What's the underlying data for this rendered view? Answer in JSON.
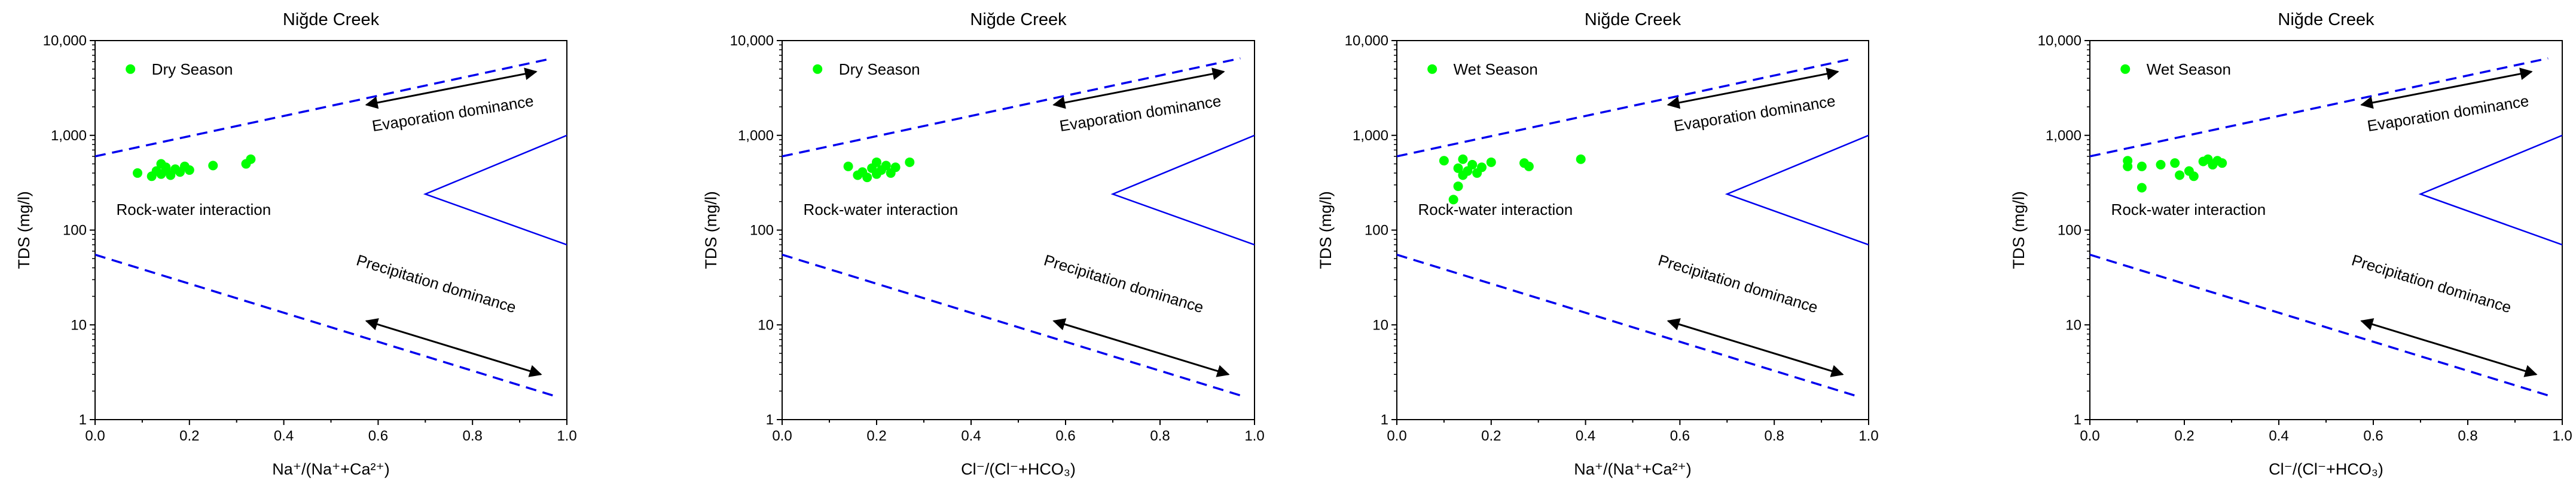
{
  "chart_data": [
    {
      "type": "scatter",
      "title": "Niğde Creek",
      "xlabel": "Na⁺/(Na⁺+Ca²⁺)",
      "ylabel": "TDS (mg/l)",
      "xscale": "linear",
      "yscale": "log",
      "xlim": [
        0,
        1
      ],
      "ylim": [
        1,
        10000
      ],
      "xticks": [
        "0.0",
        "0.2",
        "0.4",
        "0.6",
        "0.8",
        "1.0"
      ],
      "yticks": [
        "1",
        "10",
        "100",
        "1,000",
        "10,000"
      ],
      "legend": {
        "position": "top-left",
        "entries": [
          "Dry Season"
        ]
      },
      "series": [
        {
          "name": "Dry Season",
          "color": "#00ff00",
          "points": [
            {
              "x": 0.09,
              "y": 400
            },
            {
              "x": 0.12,
              "y": 370
            },
            {
              "x": 0.13,
              "y": 420
            },
            {
              "x": 0.14,
              "y": 390
            },
            {
              "x": 0.14,
              "y": 500
            },
            {
              "x": 0.15,
              "y": 430
            },
            {
              "x": 0.15,
              "y": 460
            },
            {
              "x": 0.16,
              "y": 380
            },
            {
              "x": 0.17,
              "y": 440
            },
            {
              "x": 0.18,
              "y": 410
            },
            {
              "x": 0.19,
              "y": 470
            },
            {
              "x": 0.2,
              "y": 430
            },
            {
              "x": 0.25,
              "y": 480
            },
            {
              "x": 0.32,
              "y": 500
            },
            {
              "x": 0.33,
              "y": 560
            }
          ]
        }
      ],
      "annotations": [
        "Evaporation dominance",
        "Rock-water interaction",
        "Precipitation dominance"
      ]
    },
    {
      "type": "scatter",
      "title": "Niğde Creek",
      "xlabel": "Cl⁻/(Cl⁻+HCO₃)",
      "ylabel": "TDS (mg/l)",
      "xscale": "linear",
      "yscale": "log",
      "xlim": [
        0,
        1
      ],
      "ylim": [
        1,
        10000
      ],
      "xticks": [
        "0.0",
        "0.2",
        "0.4",
        "0.6",
        "0.8",
        "1.0"
      ],
      "yticks": [
        "1",
        "10",
        "100",
        "1,000",
        "10,000"
      ],
      "legend": {
        "position": "top-left",
        "entries": [
          "Dry Season"
        ]
      },
      "series": [
        {
          "name": "Dry Season",
          "color": "#00ff00",
          "points": [
            {
              "x": 0.14,
              "y": 470
            },
            {
              "x": 0.16,
              "y": 380
            },
            {
              "x": 0.17,
              "y": 410
            },
            {
              "x": 0.18,
              "y": 360
            },
            {
              "x": 0.19,
              "y": 450
            },
            {
              "x": 0.2,
              "y": 520
            },
            {
              "x": 0.2,
              "y": 390
            },
            {
              "x": 0.21,
              "y": 430
            },
            {
              "x": 0.22,
              "y": 480
            },
            {
              "x": 0.23,
              "y": 400
            },
            {
              "x": 0.24,
              "y": 460
            },
            {
              "x": 0.27,
              "y": 520
            }
          ]
        }
      ],
      "annotations": [
        "Evaporation dominance",
        "Rock-water interaction",
        "Precipitation dominance"
      ]
    },
    {
      "type": "scatter",
      "title": "Niğde Creek",
      "xlabel": "Na⁺/(Na⁺+Ca²⁺)",
      "ylabel": "TDS (mg/l)",
      "xscale": "linear",
      "yscale": "log",
      "xlim": [
        0,
        1
      ],
      "ylim": [
        1,
        10000
      ],
      "xticks": [
        "0.0",
        "0.2",
        "0.4",
        "0.6",
        "0.8",
        "1.0"
      ],
      "yticks": [
        "1",
        "10",
        "100",
        "1,000",
        "10,000"
      ],
      "legend": {
        "position": "top-left",
        "entries": [
          "Wet Season"
        ]
      },
      "series": [
        {
          "name": "Wet Season",
          "color": "#00ff00",
          "points": [
            {
              "x": 0.1,
              "y": 540
            },
            {
              "x": 0.12,
              "y": 210
            },
            {
              "x": 0.13,
              "y": 450
            },
            {
              "x": 0.13,
              "y": 290
            },
            {
              "x": 0.14,
              "y": 380
            },
            {
              "x": 0.14,
              "y": 560
            },
            {
              "x": 0.15,
              "y": 420
            },
            {
              "x": 0.16,
              "y": 490
            },
            {
              "x": 0.17,
              "y": 400
            },
            {
              "x": 0.18,
              "y": 460
            },
            {
              "x": 0.2,
              "y": 520
            },
            {
              "x": 0.27,
              "y": 510
            },
            {
              "x": 0.28,
              "y": 470
            },
            {
              "x": 0.39,
              "y": 560
            }
          ]
        }
      ],
      "annotations": [
        "Evaporation dominance",
        "Rock-water interaction",
        "Precipitation dominance"
      ]
    },
    {
      "type": "scatter",
      "title": "Niğde Creek",
      "xlabel": "Cl⁻/(Cl⁻+HCO₃)",
      "ylabel": "TDS (mg/l)",
      "xscale": "linear",
      "yscale": "log",
      "xlim": [
        0,
        1
      ],
      "ylim": [
        1,
        10000
      ],
      "xticks": [
        "0.0",
        "0.2",
        "0.4",
        "0.6",
        "0.8",
        "1.0"
      ],
      "yticks": [
        "1",
        "10",
        "100",
        "1,000",
        "10,000"
      ],
      "legend": {
        "position": "top-left",
        "entries": [
          "Wet Season"
        ]
      },
      "series": [
        {
          "name": "Wet Season",
          "color": "#00ff00",
          "points": [
            {
              "x": 0.08,
              "y": 540
            },
            {
              "x": 0.08,
              "y": 470
            },
            {
              "x": 0.11,
              "y": 280
            },
            {
              "x": 0.11,
              "y": 470
            },
            {
              "x": 0.15,
              "y": 490
            },
            {
              "x": 0.18,
              "y": 510
            },
            {
              "x": 0.19,
              "y": 380
            },
            {
              "x": 0.21,
              "y": 420
            },
            {
              "x": 0.22,
              "y": 370
            },
            {
              "x": 0.24,
              "y": 530
            },
            {
              "x": 0.25,
              "y": 560
            },
            {
              "x": 0.26,
              "y": 490
            },
            {
              "x": 0.27,
              "y": 540
            },
            {
              "x": 0.28,
              "y": 510
            }
          ]
        }
      ],
      "annotations": [
        "Evaporation dominance",
        "Rock-water interaction",
        "Precipitation dominance"
      ]
    }
  ],
  "styles": {
    "boundary_color": "#0000ee",
    "arrow_color": "#000000",
    "point_color": "#00ff00"
  }
}
